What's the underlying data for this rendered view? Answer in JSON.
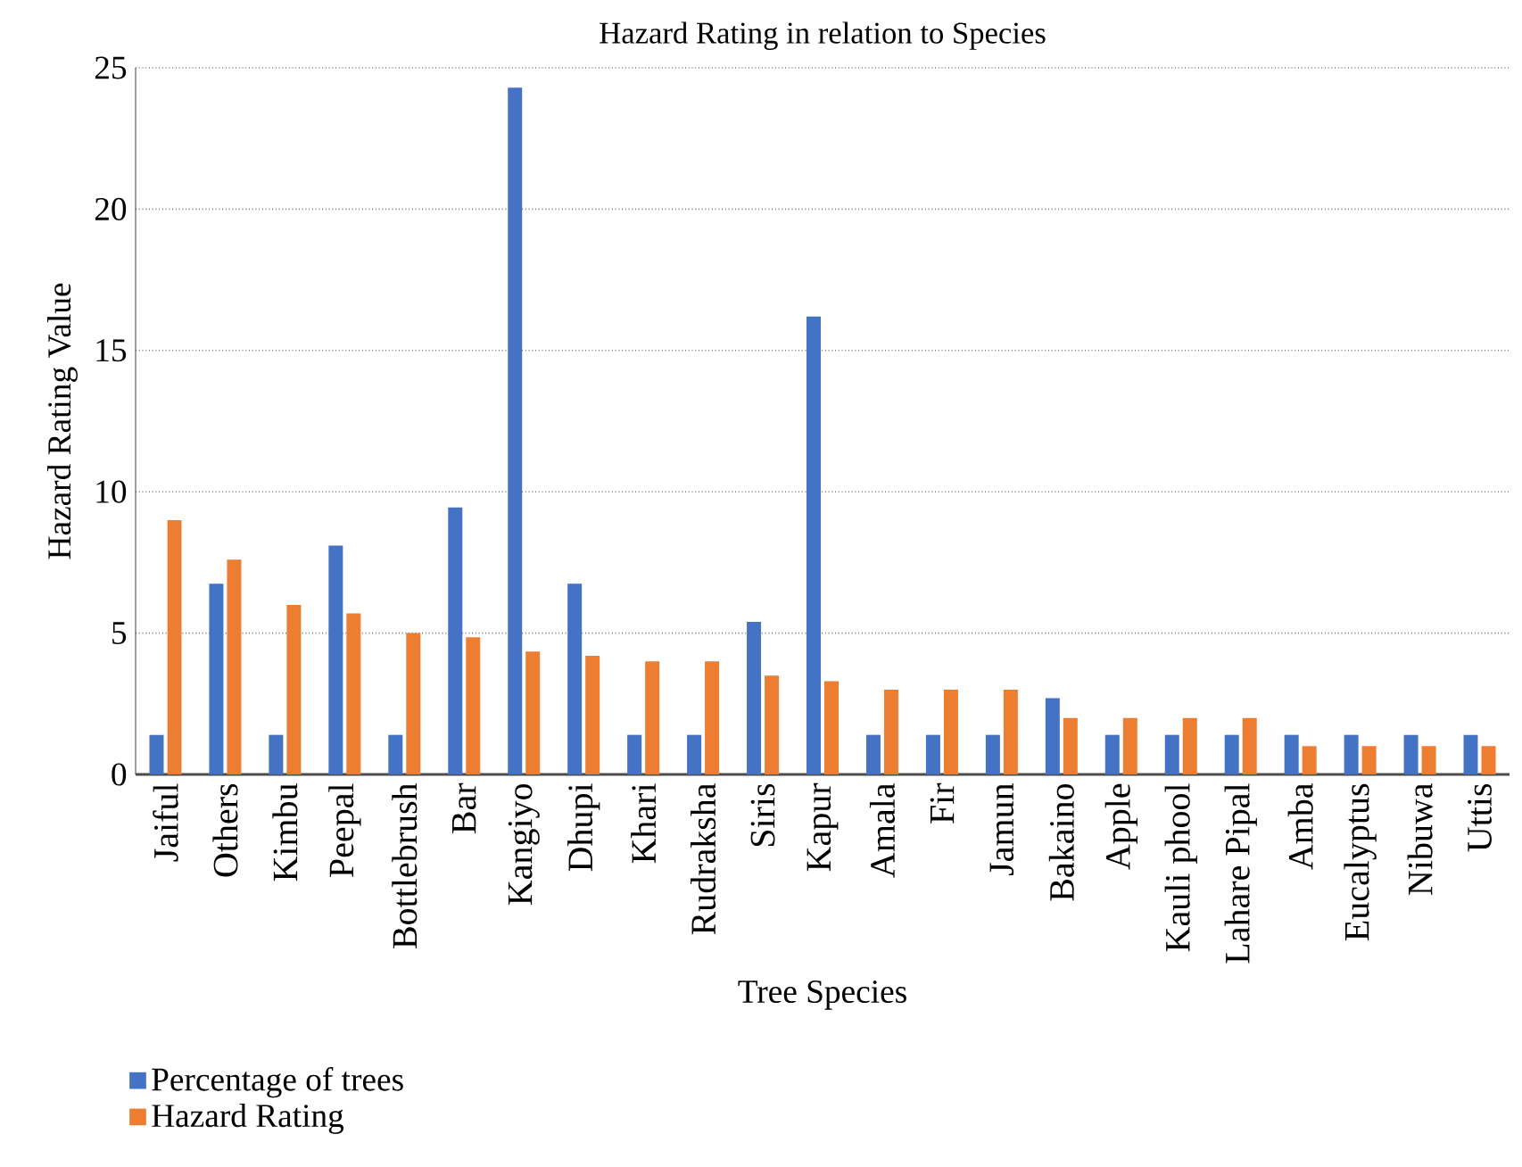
{
  "chart_data": {
    "type": "bar",
    "title": "Hazard Rating in relation to Species",
    "xlabel": "Tree Species",
    "ylabel": "Hazard Rating Value",
    "categories": [
      "Jaiful",
      "Others",
      "Kimbu",
      "Peepal",
      "Bottlebrush",
      "Bar",
      "Kangiyo",
      "Dhupi",
      "Khari",
      "Rudraksha",
      "Siris",
      "Kapur",
      "Amala",
      "Fir",
      "Jamun",
      "Bakaino",
      "Apple",
      "Kauli phool",
      "Lahare Pipal",
      "Amba",
      "Eucalyptus",
      "Nibuwa",
      "Uttis"
    ],
    "series": [
      {
        "name": "Percentage of trees",
        "color": "#4472c4",
        "values": [
          1.4,
          6.75,
          1.4,
          8.1,
          1.4,
          9.45,
          24.3,
          6.75,
          1.4,
          1.4,
          5.4,
          16.2,
          1.4,
          1.4,
          1.4,
          2.7,
          1.4,
          1.4,
          1.4,
          1.4,
          1.4,
          1.4,
          1.4
        ]
      },
      {
        "name": "Hazard Rating",
        "color": "#ed7d31",
        "values": [
          9.0,
          7.6,
          6.0,
          5.7,
          5.0,
          4.85,
          4.35,
          4.2,
          4.0,
          4.0,
          3.5,
          3.3,
          3.0,
          3.0,
          3.0,
          2.0,
          2.0,
          2.0,
          2.0,
          1.0,
          1.0,
          1.0,
          1.0
        ]
      }
    ],
    "ylim": [
      0,
      25
    ],
    "yticks": [
      0,
      5,
      10,
      15,
      20,
      25
    ],
    "grid": "y",
    "legend": "bottom left"
  }
}
